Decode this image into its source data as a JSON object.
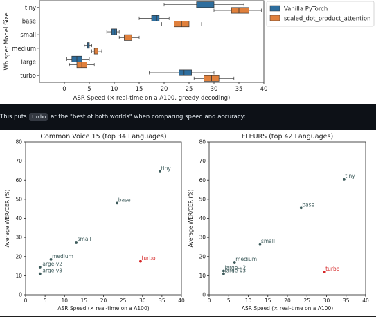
{
  "intro_line": {
    "before": "This puts",
    "code": "turbo",
    "after": "at the \"best of both worlds\" when comparing speed and accuracy:"
  },
  "colors": {
    "vanilla": "#2e6e9e",
    "sdpa": "#e0803c",
    "point": "#3c5a5a",
    "turbo": "#d62728",
    "band_bg": "#0d1117"
  },
  "chart_data": [
    {
      "type": "box",
      "title": "",
      "xlabel": "ASR Speed (× real-time on a A100, greedy decoding)",
      "ylabel": "Whisper Model Size",
      "xlim": [
        -5,
        40
      ],
      "xticks": [
        0,
        5,
        10,
        15,
        20,
        25,
        30,
        35,
        40
      ],
      "grid": false,
      "legend_position": "top-right",
      "categories": [
        "tiny",
        "base",
        "small",
        "medium",
        "large",
        "turbo"
      ],
      "series": [
        {
          "name": "Vanilla PyTorch",
          "color": "#2e6e9e",
          "boxes": [
            {
              "category": "tiny",
              "whisker_low": 20,
              "q1": 26.5,
              "median": 28,
              "q3": 30,
              "whisker_high": 36
            },
            {
              "category": "base",
              "whisker_low": 15,
              "q1": 17.5,
              "median": 18.5,
              "q3": 19,
              "whisker_high": 21
            },
            {
              "category": "small",
              "whisker_low": 8.5,
              "q1": 9.5,
              "median": 10,
              "q3": 10.5,
              "whisker_high": 11
            },
            {
              "category": "medium",
              "whisker_low": 4,
              "q1": 4.5,
              "median": 4.7,
              "q3": 5,
              "whisker_high": 5.5
            },
            {
              "category": "large",
              "whisker_low": 0.5,
              "q1": 1.5,
              "median": 2.5,
              "q3": 3.5,
              "whisker_high": 5
            },
            {
              "category": "turbo",
              "whisker_low": 17,
              "q1": 23,
              "median": 24,
              "q3": 25.5,
              "whisker_high": 30
            }
          ]
        },
        {
          "name": "scaled_dot_product_attention",
          "color": "#e0803c",
          "boxes": [
            {
              "category": "tiny",
              "whisker_low": 30,
              "q1": 33.5,
              "median": 35,
              "q3": 37,
              "whisker_high": 39.5
            },
            {
              "category": "base",
              "whisker_low": 19.5,
              "q1": 22,
              "median": 23.5,
              "q3": 25,
              "whisker_high": 27.5
            },
            {
              "category": "small",
              "whisker_low": 11,
              "q1": 12,
              "median": 13,
              "q3": 13.5,
              "whisker_high": 15
            },
            {
              "category": "medium",
              "whisker_low": 5.5,
              "q1": 6,
              "median": 6.3,
              "q3": 6.7,
              "whisker_high": 7.5
            },
            {
              "category": "large",
              "whisker_low": 1,
              "q1": 2.5,
              "median": 3.5,
              "q3": 4.5,
              "whisker_high": 6
            },
            {
              "category": "turbo",
              "whisker_low": 26,
              "q1": 28,
              "median": 29.5,
              "q3": 31,
              "whisker_high": 34
            }
          ]
        }
      ]
    },
    {
      "type": "scatter",
      "title": "Common Voice 15 (top 34 Languages)",
      "xlabel": "ASR Speed (× real-time on a A100)",
      "ylabel": "Average WER/CER (%)",
      "xlim": [
        0,
        40
      ],
      "ylim": [
        0,
        80
      ],
      "xticks": [
        0,
        5,
        10,
        15,
        20,
        25,
        30,
        35,
        40
      ],
      "yticks": [
        0,
        10,
        20,
        30,
        40,
        50,
        60,
        70,
        80
      ],
      "grid": false,
      "points": [
        {
          "label": "tiny",
          "x": 34.5,
          "y": 64.5,
          "highlight": false
        },
        {
          "label": "base",
          "x": 23.5,
          "y": 48,
          "highlight": false
        },
        {
          "label": "small",
          "x": 13,
          "y": 27.5,
          "highlight": false
        },
        {
          "label": "medium",
          "x": 6.5,
          "y": 18.5,
          "highlight": false
        },
        {
          "label": "large-v2",
          "x": 3.7,
          "y": 14.5,
          "highlight": false
        },
        {
          "label": "large-v3",
          "x": 3.7,
          "y": 11,
          "highlight": false
        },
        {
          "label": "turbo",
          "x": 29.5,
          "y": 17.5,
          "highlight": true
        }
      ]
    },
    {
      "type": "scatter",
      "title": "FLEURS (top 42 Languages)",
      "xlabel": "ASR Speed (× real-time on a A100)",
      "ylabel": "Average WER/CER (%)",
      "xlim": [
        0,
        40
      ],
      "ylim": [
        0,
        80
      ],
      "xticks": [
        0,
        5,
        10,
        15,
        20,
        25,
        30,
        35,
        40
      ],
      "yticks": [
        0,
        10,
        20,
        30,
        40,
        50,
        60,
        70,
        80
      ],
      "grid": false,
      "points": [
        {
          "label": "tiny",
          "x": 34.5,
          "y": 60.5,
          "highlight": false
        },
        {
          "label": "base",
          "x": 23.5,
          "y": 45.5,
          "highlight": false
        },
        {
          "label": "small",
          "x": 13,
          "y": 26.5,
          "highlight": false
        },
        {
          "label": "medium",
          "x": 6.5,
          "y": 17,
          "highlight": false
        },
        {
          "label": "large-v2",
          "x": 3.7,
          "y": 12.5,
          "highlight": false
        },
        {
          "label": "large-v3",
          "x": 3.7,
          "y": 11,
          "highlight": false
        },
        {
          "label": "turbo",
          "x": 29.5,
          "y": 12,
          "highlight": true
        }
      ]
    }
  ]
}
